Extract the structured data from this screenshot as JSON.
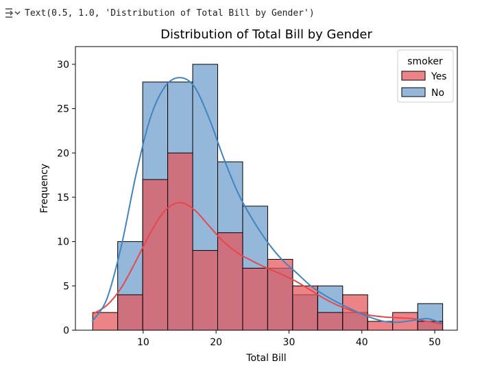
{
  "output": {
    "icon": "output-collapse-icon",
    "text": "Text(0.5, 1.0, 'Distribution of Total Bill by Gender')"
  },
  "chart_data": {
    "type": "histogram",
    "title": "Distribution of Total Bill by Gender",
    "xlabel": "Total Bill",
    "ylabel": "Frequency",
    "xlim": [
      0.7,
      53.1
    ],
    "ylim": [
      0,
      32
    ],
    "xticks": [
      10,
      20,
      30,
      40,
      50
    ],
    "yticks": [
      0,
      5,
      10,
      15,
      20,
      25,
      30
    ],
    "grid": false,
    "legend": {
      "title": "smoker",
      "location": "top-right"
    },
    "bin_edges": [
      3.07,
      6.5,
      9.93,
      13.36,
      16.79,
      20.22,
      23.65,
      27.08,
      30.51,
      33.94,
      37.37,
      40.8,
      44.23,
      47.66,
      51.09
    ],
    "series": [
      {
        "name": "Yes",
        "color": "#e8474a",
        "bar_color": "#e45559",
        "counts": [
          2,
          4,
          17,
          20,
          9,
          11,
          7,
          8,
          5,
          2,
          4,
          1,
          2,
          1
        ],
        "kde_x": [
          3.0,
          5,
          7,
          9,
          11,
          13,
          15,
          17,
          19,
          21,
          23,
          25,
          27,
          29,
          31,
          33,
          35,
          37,
          39,
          41,
          43,
          45,
          47,
          49,
          51
        ],
        "kde_y": [
          1.8,
          2.8,
          4.8,
          7.8,
          11.0,
          13.5,
          14.4,
          13.6,
          11.8,
          10.0,
          8.7,
          7.8,
          7.0,
          6.3,
          5.5,
          4.5,
          3.5,
          2.7,
          2.1,
          1.7,
          1.5,
          1.4,
          1.3,
          1.0,
          0.7
        ]
      },
      {
        "name": "No",
        "color": "#3f84c0",
        "bar_color": "#8ab0d6",
        "counts": [
          0,
          10,
          28,
          28,
          30,
          19,
          14,
          7,
          4,
          5,
          2,
          0,
          0,
          3
        ],
        "kde_x": [
          3.0,
          5,
          7,
          9,
          11,
          13,
          15,
          17,
          19,
          21,
          23,
          25,
          27,
          29,
          31,
          33,
          35,
          37,
          39,
          41,
          43,
          45,
          47,
          49,
          51
        ],
        "kde_y": [
          1.0,
          3.5,
          9.5,
          17.5,
          24.0,
          27.5,
          28.5,
          27.5,
          24.0,
          19.5,
          15.5,
          12.5,
          10.0,
          8.0,
          6.5,
          5.0,
          3.9,
          3.0,
          2.2,
          1.5,
          1.0,
          0.9,
          1.1,
          1.3,
          0.8
        ]
      }
    ]
  }
}
